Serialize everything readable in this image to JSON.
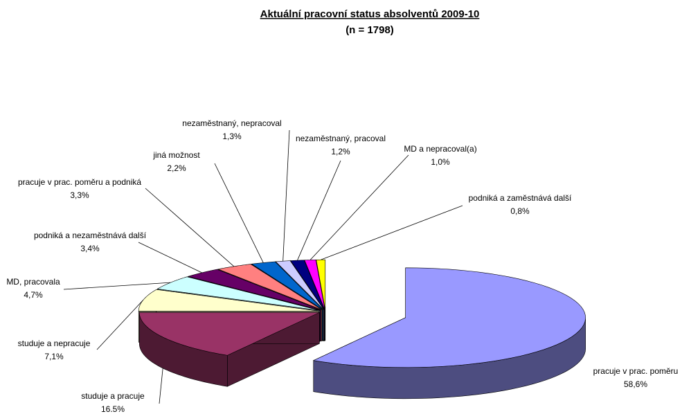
{
  "chart_data": {
    "type": "pie3d",
    "title": "Aktuální pracovní status absolventů 2009-10",
    "subtitle": "(n = 1798)",
    "categories": [
      "pracuje v prac. poměru",
      "studuje a pracuje",
      "studuje a nepracuje",
      "MD, pracovala",
      "podniká a nezaměstnává další",
      "pracuje v prac. poměru a podniká",
      "jiná možnost",
      "nezaměstnaný, nepracoval",
      "nezaměstnaný, pracoval",
      "MD a nepracoval(a)",
      "podniká a zaměstnává další"
    ],
    "values": [
      58.6,
      16.5,
      7.1,
      4.7,
      3.4,
      3.3,
      2.2,
      1.3,
      1.2,
      1.0,
      0.8
    ],
    "value_labels": [
      "58,6%",
      "16.5%",
      "7,1%",
      "4,7%",
      "3,4%",
      "3,3%",
      "2,2%",
      "1,3%",
      "1,2%",
      "1,0%",
      "0,8%"
    ],
    "colors": [
      "#9999ff",
      "#993366",
      "#ffffcc",
      "#ccffff",
      "#660066",
      "#ff8080",
      "#0066cc",
      "#ccccff",
      "#000080",
      "#ff00ff",
      "#ffff00"
    ]
  }
}
